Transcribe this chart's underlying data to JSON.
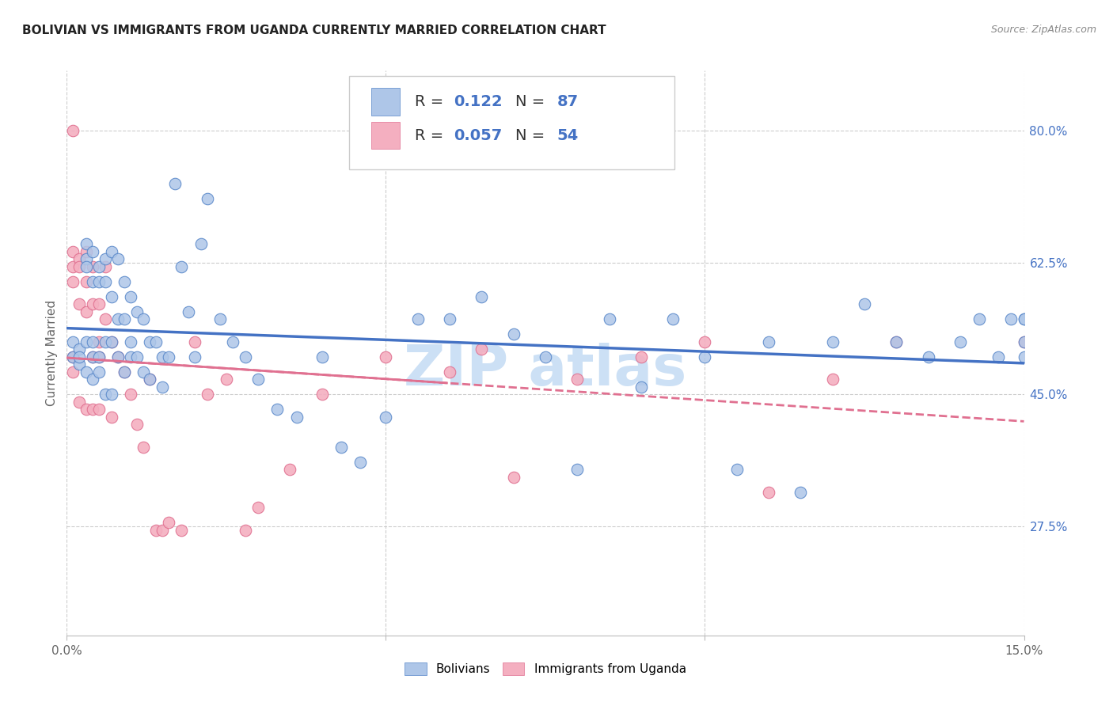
{
  "title": "BOLIVIAN VS IMMIGRANTS FROM UGANDA CURRENTLY MARRIED CORRELATION CHART",
  "source": "Source: ZipAtlas.com",
  "ylabel": "Currently Married",
  "legend_blue_r": "0.122",
  "legend_blue_n": "87",
  "legend_pink_r": "0.057",
  "legend_pink_n": "54",
  "blue_color": "#aec6e8",
  "blue_edge_color": "#5585c8",
  "blue_line_color": "#4472c4",
  "pink_color": "#f4afc0",
  "pink_edge_color": "#e07090",
  "pink_line_color": "#e07090",
  "background_color": "#ffffff",
  "grid_color": "#cccccc",
  "right_tick_color": "#4472c4",
  "title_color": "#222222",
  "source_color": "#888888",
  "watermark_color": "#cce0f5",
  "ylabel_color": "#666666",
  "xtick_color": "#666666",
  "xlim": [
    0.0,
    0.15
  ],
  "ylim": [
    0.13,
    0.88
  ],
  "right_yticks": [
    0.8,
    0.625,
    0.45,
    0.275
  ],
  "right_yticklabels": [
    "80.0%",
    "62.5%",
    "45.0%",
    "27.5%"
  ],
  "bottom_right_label": "15.0%",
  "hgrid_values": [
    0.8,
    0.625,
    0.45,
    0.275
  ],
  "vgrid_values": [
    0.0,
    0.05,
    0.1,
    0.15
  ],
  "blue_scatter_x": [
    0.001,
    0.001,
    0.002,
    0.002,
    0.002,
    0.003,
    0.003,
    0.003,
    0.003,
    0.003,
    0.004,
    0.004,
    0.004,
    0.004,
    0.004,
    0.005,
    0.005,
    0.005,
    0.005,
    0.006,
    0.006,
    0.006,
    0.006,
    0.007,
    0.007,
    0.007,
    0.007,
    0.008,
    0.008,
    0.008,
    0.009,
    0.009,
    0.009,
    0.01,
    0.01,
    0.01,
    0.011,
    0.011,
    0.012,
    0.012,
    0.013,
    0.013,
    0.014,
    0.015,
    0.015,
    0.016,
    0.017,
    0.018,
    0.019,
    0.02,
    0.021,
    0.022,
    0.024,
    0.026,
    0.028,
    0.03,
    0.033,
    0.036,
    0.04,
    0.043,
    0.046,
    0.05,
    0.055,
    0.06,
    0.065,
    0.07,
    0.075,
    0.08,
    0.085,
    0.09,
    0.095,
    0.1,
    0.105,
    0.11,
    0.115,
    0.12,
    0.125,
    0.13,
    0.135,
    0.14,
    0.143,
    0.146,
    0.148,
    0.15,
    0.15,
    0.15,
    0.15
  ],
  "blue_scatter_y": [
    0.5,
    0.52,
    0.49,
    0.51,
    0.5,
    0.63,
    0.65,
    0.62,
    0.48,
    0.52,
    0.64,
    0.6,
    0.52,
    0.47,
    0.5,
    0.62,
    0.6,
    0.5,
    0.48,
    0.63,
    0.6,
    0.52,
    0.45,
    0.64,
    0.58,
    0.52,
    0.45,
    0.63,
    0.55,
    0.5,
    0.6,
    0.55,
    0.48,
    0.58,
    0.52,
    0.5,
    0.56,
    0.5,
    0.55,
    0.48,
    0.52,
    0.47,
    0.52,
    0.5,
    0.46,
    0.5,
    0.73,
    0.62,
    0.56,
    0.5,
    0.65,
    0.71,
    0.55,
    0.52,
    0.5,
    0.47,
    0.43,
    0.42,
    0.5,
    0.38,
    0.36,
    0.42,
    0.55,
    0.55,
    0.58,
    0.53,
    0.5,
    0.35,
    0.55,
    0.46,
    0.55,
    0.5,
    0.35,
    0.52,
    0.32,
    0.52,
    0.57,
    0.52,
    0.5,
    0.52,
    0.55,
    0.5,
    0.55,
    0.52,
    0.5,
    0.55,
    0.55
  ],
  "pink_scatter_x": [
    0.001,
    0.001,
    0.001,
    0.001,
    0.001,
    0.001,
    0.002,
    0.002,
    0.002,
    0.002,
    0.003,
    0.003,
    0.003,
    0.003,
    0.004,
    0.004,
    0.004,
    0.004,
    0.005,
    0.005,
    0.005,
    0.005,
    0.006,
    0.006,
    0.007,
    0.007,
    0.008,
    0.009,
    0.01,
    0.011,
    0.012,
    0.013,
    0.014,
    0.015,
    0.016,
    0.018,
    0.02,
    0.022,
    0.025,
    0.028,
    0.03,
    0.035,
    0.04,
    0.05,
    0.06,
    0.065,
    0.07,
    0.08,
    0.09,
    0.1,
    0.11,
    0.12,
    0.13,
    0.15
  ],
  "pink_scatter_y": [
    0.8,
    0.64,
    0.62,
    0.6,
    0.5,
    0.48,
    0.63,
    0.62,
    0.57,
    0.44,
    0.64,
    0.6,
    0.56,
    0.43,
    0.62,
    0.57,
    0.5,
    0.43,
    0.57,
    0.52,
    0.5,
    0.43,
    0.62,
    0.55,
    0.52,
    0.42,
    0.5,
    0.48,
    0.45,
    0.41,
    0.38,
    0.47,
    0.27,
    0.27,
    0.28,
    0.27,
    0.52,
    0.45,
    0.47,
    0.27,
    0.3,
    0.35,
    0.45,
    0.5,
    0.48,
    0.51,
    0.34,
    0.47,
    0.5,
    0.52,
    0.32,
    0.47,
    0.52,
    0.52
  ]
}
